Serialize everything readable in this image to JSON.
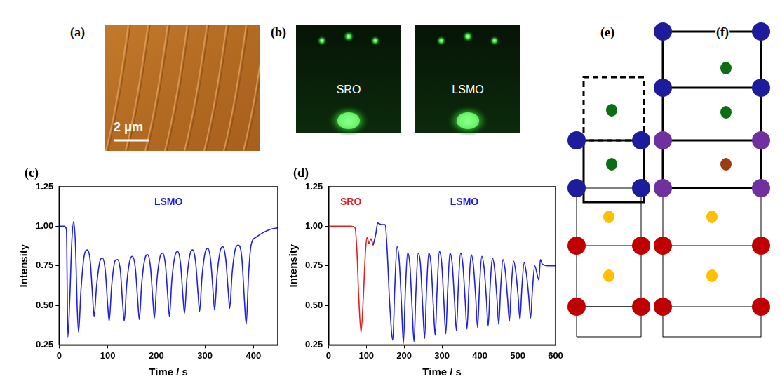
{
  "panels": {
    "a": {
      "label": "(a)",
      "scale_bar": "2 μm"
    },
    "b": {
      "label": "(b)",
      "images": [
        "SRO",
        "LSMO"
      ]
    },
    "e": {
      "label": "(e)"
    },
    "f": {
      "label": "(f)"
    }
  },
  "chart_data": [
    {
      "panel_label": "(c)",
      "type": "line",
      "x_label": "Time / s",
      "y_label": "Intensity",
      "xlim": [
        0,
        450
      ],
      "xticks": [
        0,
        100,
        200,
        300,
        400
      ],
      "ylim": [
        0.25,
        1.25
      ],
      "yticks": [
        0.25,
        {
          "value": 0.5,
          "label": "0.50"
        },
        0.75,
        {
          "value": 1.0,
          "label": "1.00"
        },
        1.25
      ],
      "grid": false,
      "series": [
        {
          "name": "LSMO",
          "color": "#2020e0",
          "x": [
            0,
            10,
            15,
            18,
            22,
            26,
            30,
            34,
            37,
            40,
            45,
            52,
            58,
            64,
            69,
            72,
            77,
            84,
            89,
            95,
            100,
            103,
            108,
            115,
            120,
            126,
            131,
            134,
            139,
            146,
            151,
            157,
            162,
            165,
            170,
            177,
            182,
            188,
            193,
            196,
            201,
            208,
            213,
            219,
            224,
            227,
            232,
            239,
            244,
            250,
            255,
            258,
            263,
            270,
            275,
            281,
            286,
            289,
            294,
            301,
            306,
            312,
            317,
            320,
            325,
            332,
            337,
            343,
            348,
            351,
            356,
            363,
            369,
            376,
            381,
            385,
            390,
            395,
            405,
            420,
            435,
            450
          ],
          "values": [
            1.0,
            1.0,
            0.98,
            0.3,
            0.55,
            0.9,
            1.03,
            0.85,
            0.5,
            0.33,
            0.6,
            0.82,
            0.85,
            0.78,
            0.55,
            0.43,
            0.62,
            0.78,
            0.8,
            0.72,
            0.5,
            0.4,
            0.62,
            0.78,
            0.79,
            0.72,
            0.5,
            0.4,
            0.63,
            0.79,
            0.81,
            0.73,
            0.52,
            0.41,
            0.64,
            0.8,
            0.82,
            0.74,
            0.53,
            0.42,
            0.65,
            0.81,
            0.83,
            0.75,
            0.54,
            0.43,
            0.66,
            0.82,
            0.84,
            0.76,
            0.55,
            0.45,
            0.67,
            0.83,
            0.85,
            0.77,
            0.57,
            0.46,
            0.68,
            0.84,
            0.86,
            0.78,
            0.58,
            0.47,
            0.69,
            0.85,
            0.87,
            0.79,
            0.59,
            0.48,
            0.7,
            0.86,
            0.88,
            0.8,
            0.55,
            0.38,
            0.7,
            0.88,
            0.93,
            0.96,
            0.98,
            0.99
          ]
        }
      ]
    },
    {
      "panel_label": "(d)",
      "type": "line",
      "x_label": "Time / s",
      "y_label": "Intensity",
      "xlim": [
        0,
        600
      ],
      "xticks": [
        0,
        100,
        200,
        300,
        400,
        500,
        600
      ],
      "ylim": [
        0.25,
        1.25
      ],
      "yticks": [
        0.25,
        {
          "value": 0.5,
          "label": "0.50"
        },
        0.75,
        {
          "value": 1.0,
          "label": "1.00"
        },
        1.25
      ],
      "grid": false,
      "series": [
        {
          "name": "SRO",
          "color": "#e02020",
          "x": [
            0,
            20,
            40,
            60,
            70,
            75,
            80,
            86,
            92,
            98,
            102,
            107,
            112,
            118
          ],
          "values": [
            1.0,
            1.0,
            1.0,
            1.0,
            0.99,
            0.85,
            0.55,
            0.33,
            0.55,
            0.85,
            0.93,
            0.89,
            0.92,
            0.88
          ]
        },
        {
          "name": "LSMO",
          "color": "#2020e0",
          "x": [
            118,
            125,
            130,
            140,
            150,
            155,
            162,
            170,
            175,
            181,
            187,
            193,
            198,
            203,
            209,
            215,
            221,
            226,
            231,
            237,
            243,
            249,
            254,
            259,
            265,
            271,
            277,
            282,
            287,
            293,
            299,
            305,
            310,
            315,
            321,
            327,
            333,
            338,
            343,
            349,
            355,
            361,
            366,
            371,
            377,
            383,
            389,
            394,
            399,
            405,
            411,
            417,
            422,
            427,
            433,
            439,
            445,
            450,
            455,
            461,
            467,
            473,
            478,
            483,
            489,
            495,
            501,
            506,
            511,
            517,
            523,
            529,
            534,
            539,
            545,
            551,
            556,
            560,
            565,
            580,
            600
          ],
          "values": [
            0.88,
            0.95,
            1.02,
            1.01,
            1.01,
            0.85,
            0.5,
            0.28,
            0.6,
            0.87,
            0.78,
            0.5,
            0.26,
            0.58,
            0.83,
            0.76,
            0.48,
            0.27,
            0.58,
            0.83,
            0.76,
            0.49,
            0.29,
            0.59,
            0.83,
            0.76,
            0.5,
            0.31,
            0.6,
            0.84,
            0.77,
            0.52,
            0.32,
            0.6,
            0.83,
            0.76,
            0.53,
            0.34,
            0.61,
            0.83,
            0.76,
            0.54,
            0.35,
            0.61,
            0.82,
            0.75,
            0.55,
            0.36,
            0.61,
            0.81,
            0.74,
            0.55,
            0.37,
            0.61,
            0.8,
            0.73,
            0.55,
            0.38,
            0.61,
            0.79,
            0.72,
            0.55,
            0.4,
            0.61,
            0.78,
            0.71,
            0.56,
            0.41,
            0.61,
            0.77,
            0.7,
            0.56,
            0.42,
            0.6,
            0.75,
            0.7,
            0.66,
            0.79,
            0.76,
            0.75,
            0.75
          ]
        }
      ]
    }
  ]
}
